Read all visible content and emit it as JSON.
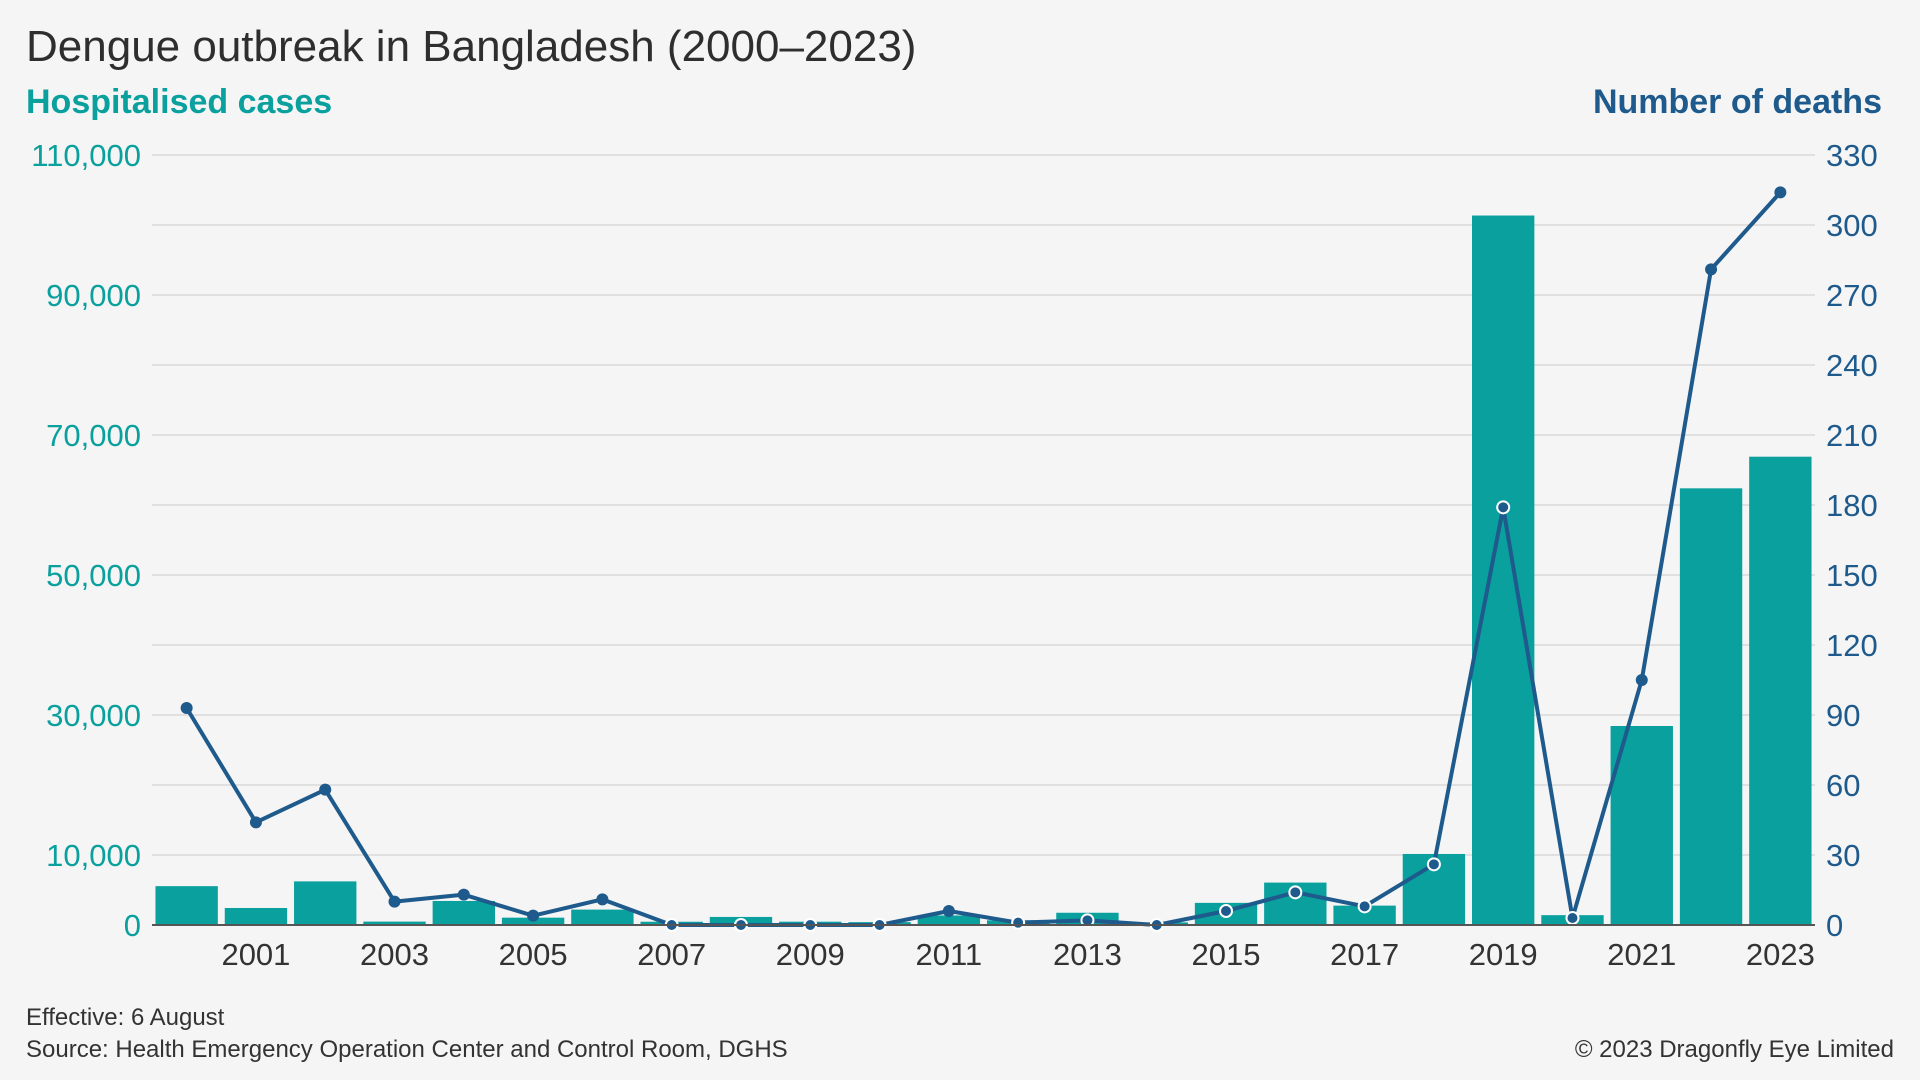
{
  "chart_data": {
    "type": "bar",
    "title": "Dengue outbreak in Bangladesh (2000–2023)",
    "ylabel": "Hospitalised cases",
    "y2label": "Number of deaths",
    "categories": [
      "2000",
      "2001",
      "2002",
      "2003",
      "2004",
      "2005",
      "2006",
      "2007",
      "2008",
      "2009",
      "2010",
      "2011",
      "2012",
      "2013",
      "2014",
      "2015",
      "2016",
      "2017",
      "2018",
      "2019",
      "2020",
      "2021",
      "2022",
      "2023"
    ],
    "x_tick_labels": [
      "2001",
      "2003",
      "2005",
      "2007",
      "2009",
      "2011",
      "2013",
      "2015",
      "2017",
      "2019",
      "2021",
      "2023"
    ],
    "ylim": [
      0,
      110000
    ],
    "y_ticks": [
      0,
      10000,
      30000,
      50000,
      70000,
      90000,
      110000
    ],
    "y_tick_labels": [
      "0",
      "10,000",
      "30,000",
      "50,000",
      "70,000",
      "90,000",
      "110,000"
    ],
    "y2lim": [
      0,
      330
    ],
    "y2_ticks": [
      0,
      30,
      60,
      90,
      120,
      150,
      180,
      210,
      240,
      270,
      300,
      330
    ],
    "y2_tick_labels": [
      "0",
      "30",
      "60",
      "90",
      "120",
      "150",
      "180",
      "210",
      "240",
      "270",
      "300",
      "330"
    ],
    "gridlines": [
      0,
      10000,
      20000,
      30000,
      40000,
      50000,
      60000,
      70000,
      80000,
      90000,
      100000,
      110000
    ],
    "grid": true,
    "series": [
      {
        "name": "Hospitalised cases",
        "type": "bar",
        "axis": "left",
        "color": "#0aa09d",
        "values": [
          5551,
          2430,
          6232,
          486,
          3434,
          1048,
          2200,
          466,
          1153,
          474,
          409,
          1359,
          671,
          1749,
          375,
          3162,
          6060,
          2769,
          10148,
          101354,
          1405,
          28429,
          62382,
          66900
        ]
      },
      {
        "name": "Number of deaths",
        "type": "line",
        "axis": "right",
        "color": "#1e5a8c",
        "values": [
          93,
          44,
          58,
          10,
          13,
          4,
          11,
          0,
          0,
          0,
          0,
          6,
          1,
          2,
          0,
          6,
          14,
          8,
          26,
          179,
          3,
          105,
          281,
          314
        ]
      }
    ]
  },
  "labels": {
    "note": "Effective: 6 August",
    "source": "Source: Health Emergency Operation Center and Control Room, DGHS",
    "copyright": "© 2023 Dragonfly Eye Limited"
  }
}
